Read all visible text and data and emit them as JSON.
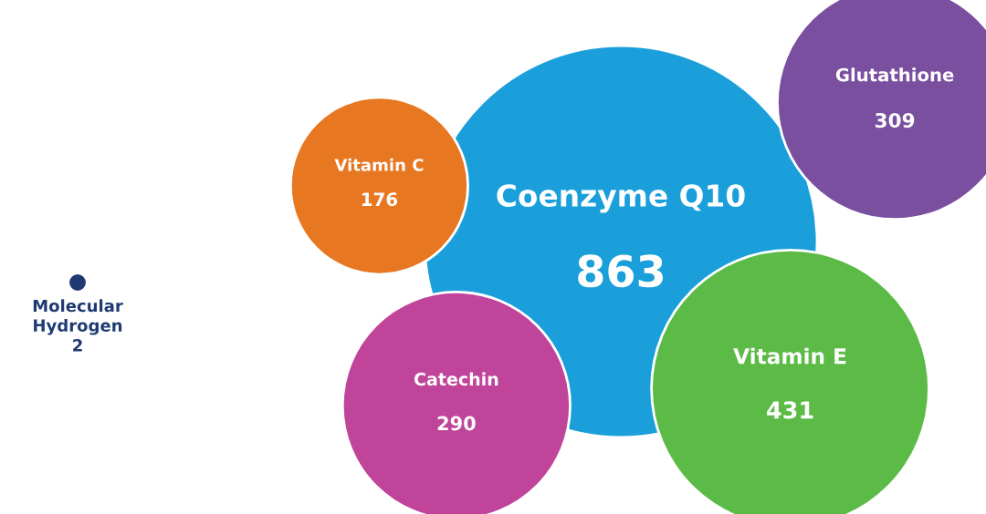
{
  "chart_data": {
    "type": "other",
    "categories": [
      "Molecular Hydrogen",
      "Vitamin C",
      "Catechin",
      "Coenzyme Q10",
      "Vitamin E",
      "Glutathione"
    ],
    "values": [
      2,
      176,
      290,
      863,
      431,
      309
    ],
    "colors": [
      "#1f3a73",
      "#e87722",
      "#c0449a",
      "#1a9fdb",
      "#5bbb46",
      "#7b4fa0"
    ],
    "data_labels": true
  }
}
